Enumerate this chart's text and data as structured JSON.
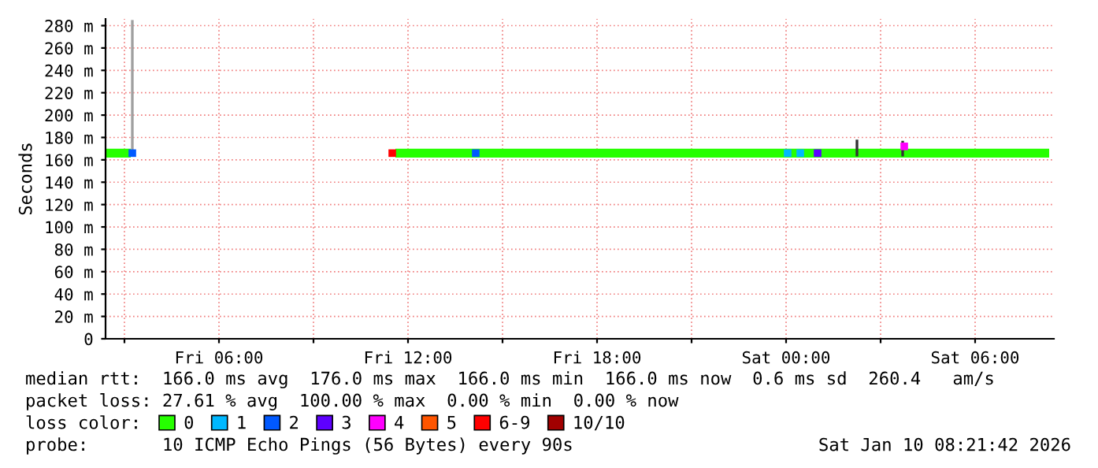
{
  "chart_data": {
    "type": "line",
    "ylabel": "Seconds",
    "xlim": [
      "2026-01-09T02:24",
      "2026-01-10T08:30"
    ],
    "ylim": [
      0,
      286
    ],
    "xticks": [
      {
        "value": "2026-01-09T03:00",
        "label": null
      },
      {
        "value": "2026-01-09T06:00",
        "label": "Fri 06:00"
      },
      {
        "value": "2026-01-09T09:00",
        "label": null
      },
      {
        "value": "2026-01-09T12:00",
        "label": "Fri 12:00"
      },
      {
        "value": "2026-01-09T15:00",
        "label": null
      },
      {
        "value": "2026-01-09T18:00",
        "label": "Fri 18:00"
      },
      {
        "value": "2026-01-09T21:00",
        "label": null
      },
      {
        "value": "2026-01-10T00:00",
        "label": "Sat 00:00"
      },
      {
        "value": "2026-01-10T03:00",
        "label": null
      },
      {
        "value": "2026-01-10T06:00",
        "label": "Sat 06:00"
      }
    ],
    "yticks": [
      0,
      {
        "value": 20,
        "label": "20 m"
      },
      {
        "value": 40,
        "label": "40 m"
      },
      {
        "value": 60,
        "label": "60 m"
      },
      {
        "value": 80,
        "label": "80 m"
      },
      {
        "value": 100,
        "label": "100 m"
      },
      {
        "value": 120,
        "label": "120 m"
      },
      {
        "value": 140,
        "label": "140 m"
      },
      {
        "value": 160,
        "label": "160 m"
      },
      {
        "value": 180,
        "label": "180 m"
      },
      {
        "value": 200,
        "label": "200 m"
      },
      {
        "value": 220,
        "label": "220 m"
      },
      {
        "value": 240,
        "label": "240 m"
      },
      {
        "value": 260,
        "label": "260 m"
      },
      {
        "value": 280,
        "label": "280 m"
      }
    ],
    "grid": true,
    "legend": "bottom",
    "legend_title": "loss color:",
    "series": [
      {
        "color": "#a0a0a0",
        "x": [
          "2026-01-09T03:15",
          "2026-01-09T03:15"
        ],
        "values": [
          166,
          285
        ]
      },
      {
        "color": "#333333",
        "x": [
          "2026-01-10T02:15",
          "2026-01-10T02:15",
          "2026-01-10T03:00",
          "2026-01-10T03:42",
          "2026-01-10T03:42"
        ],
        "values": [
          163,
          178,
          null,
          163,
          177
        ]
      },
      {
        "name": "0",
        "color": "#26ff00",
        "x": [
          "2026-01-09T02:24",
          "2026-01-09T03:12",
          "2026-01-09T07:00",
          "2026-01-09T11:36",
          "2026-01-10T08:21"
        ],
        "values": [
          166,
          166,
          null,
          166,
          166
        ]
      },
      {
        "type": "scatter",
        "marker": "square",
        "name": "1",
        "color": "#00b8ff",
        "x": [
          "2026-01-10T00:03",
          "2026-01-10T00:27"
        ],
        "values": [
          166,
          166
        ]
      },
      {
        "type": "scatter",
        "marker": "square",
        "name": "2",
        "color": "#0059ff",
        "x": [
          "2026-01-09T03:15",
          "2026-01-09T14:09"
        ],
        "values": [
          166,
          166
        ]
      },
      {
        "type": "scatter",
        "marker": "square",
        "name": "3",
        "color": "#5e00ff",
        "x": [
          "2026-01-10T01:00"
        ],
        "values": [
          166
        ]
      },
      {
        "type": "scatter",
        "marker": "square",
        "name": "4",
        "color": "#ff00fe",
        "x": [
          "2026-01-10T03:45"
        ],
        "values": [
          172
        ]
      },
      {
        "type": "scatter",
        "marker": "square",
        "name": "5",
        "color": "#ff5500"
      },
      {
        "type": "scatter",
        "marker": "square",
        "name": "6-9",
        "color": "#ff0000",
        "x": [
          "2026-01-09T11:30"
        ],
        "values": [
          166
        ]
      },
      {
        "type": "scatter",
        "marker": "square",
        "name": "10/10",
        "color": "#a10000"
      }
    ],
    "annotations": [
      "median rtt:  166.0 ms avg  176.0 ms max  166.0 ms min  166.0 ms now  0.6 ms sd  260.4   am/s",
      "packet loss: 27.61 % avg  100.00 % max  0.00 % min  0.00 % now",
      "probe:       10 ICMP Echo Pings (56 Bytes) every 90s",
      "Sat Jan 10 08:21:42 2026"
    ]
  }
}
